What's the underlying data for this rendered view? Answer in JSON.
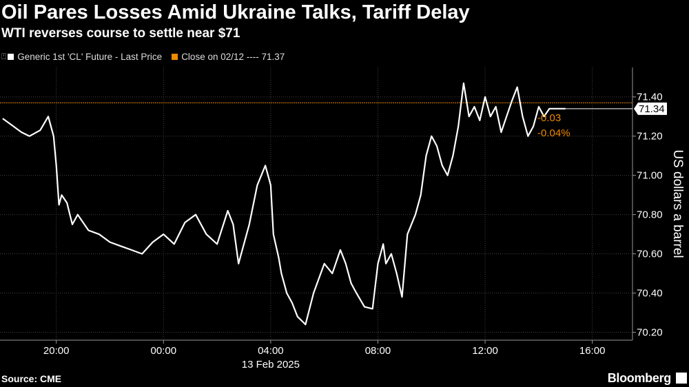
{
  "title": "Oil Pares Losses Amid Ukraine Talks, Tariff Delay",
  "subtitle": "WTI reverses course to settle near $71",
  "legend": [
    {
      "label": "Generic 1st 'CL' Future - Last Price",
      "color": "#ffffff"
    },
    {
      "label": "Close on 02/12 ---- 71.37",
      "color": "#f08a00"
    }
  ],
  "source": "Source: CME",
  "brand": "Bloomberg",
  "colors": {
    "background": "#000000",
    "price": "#ffffff",
    "close": "#f08a00",
    "grid": "#444444"
  },
  "chart_data": {
    "type": "line",
    "ylabel": "US dollars a barrel",
    "ylim": [
      70.16,
      71.55
    ],
    "yticks": [
      "71.40",
      "71.20",
      "71.00",
      "70.80",
      "70.60",
      "70.40",
      "70.20"
    ],
    "ytick_values": [
      71.4,
      71.2,
      71.0,
      70.8,
      70.6,
      70.4,
      70.2
    ],
    "xticks": [
      "20:00",
      "00:00",
      "04:00",
      "08:00",
      "12:00",
      "16:00"
    ],
    "xtick_hours": [
      20,
      24,
      28,
      32,
      36,
      40
    ],
    "date_label": "13 Feb 2025",
    "xlim_hours": [
      17.9,
      41.5
    ],
    "close_value": 71.37,
    "last_label": "71.34",
    "last_value": 71.34,
    "change_abs": "-0.03",
    "change_pct": "-0.04%",
    "series": [
      {
        "name": "Generic 1st 'CL' Future - Last Price",
        "x_hours": [
          18.0,
          18.3,
          18.7,
          19.0,
          19.4,
          19.7,
          19.9,
          20.0,
          20.1,
          20.2,
          20.4,
          20.6,
          20.8,
          21.2,
          21.6,
          22.0,
          22.4,
          22.8,
          23.2,
          23.6,
          24.0,
          24.4,
          24.8,
          25.2,
          25.6,
          26.0,
          26.4,
          26.6,
          26.8,
          27.2,
          27.5,
          27.8,
          28.0,
          28.1,
          28.3,
          28.4,
          28.6,
          28.8,
          29.0,
          29.3,
          29.6,
          30.0,
          30.3,
          30.6,
          30.8,
          31.0,
          31.2,
          31.5,
          31.8,
          32.0,
          32.2,
          32.3,
          32.5,
          32.7,
          32.9,
          33.1,
          33.4,
          33.6,
          33.8,
          34.0,
          34.2,
          34.4,
          34.6,
          34.8,
          35.0,
          35.2,
          35.4,
          35.6,
          35.8,
          36.0,
          36.2,
          36.4,
          36.6,
          36.8,
          37.0,
          37.2,
          37.4,
          37.6,
          37.8,
          38.0,
          38.2,
          38.4,
          38.6,
          38.8,
          39.0
        ],
        "values": [
          71.29,
          71.26,
          71.22,
          71.2,
          71.23,
          71.3,
          71.2,
          71.05,
          70.85,
          70.9,
          70.86,
          70.75,
          70.8,
          70.72,
          70.7,
          70.66,
          70.64,
          70.62,
          70.6,
          70.66,
          70.7,
          70.65,
          70.76,
          70.8,
          70.7,
          70.65,
          70.82,
          70.75,
          70.55,
          70.75,
          70.95,
          71.05,
          70.95,
          70.7,
          70.58,
          70.5,
          70.4,
          70.35,
          70.28,
          70.24,
          70.4,
          70.55,
          70.5,
          70.62,
          70.55,
          70.45,
          70.4,
          70.33,
          70.32,
          70.55,
          70.65,
          70.55,
          70.6,
          70.5,
          70.38,
          70.7,
          70.8,
          70.9,
          71.1,
          71.2,
          71.15,
          71.05,
          71.0,
          71.1,
          71.25,
          71.47,
          71.3,
          71.35,
          71.28,
          71.4,
          71.3,
          71.35,
          71.22,
          71.3,
          71.38,
          71.45,
          71.3,
          71.2,
          71.25,
          71.35,
          71.3,
          71.34,
          71.34,
          71.34,
          71.34
        ]
      }
    ]
  }
}
